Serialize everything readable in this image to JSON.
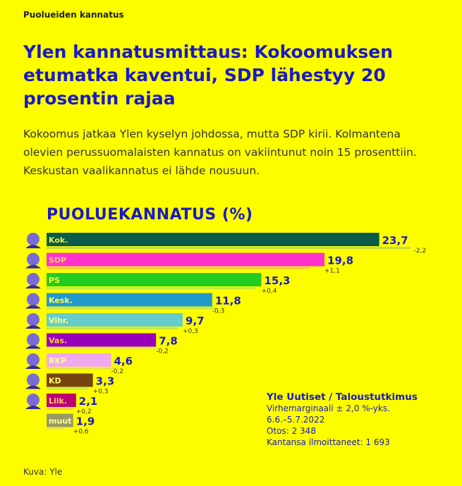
{
  "kicker": "Puolueiden kannatus",
  "title": "Ylen kannatusmittaus: Kokoomuksen etumatka kaventui, SDP lähestyy 20 prosentin rajaa",
  "lead": "Kokoomus jatkaa Ylen kyselyn johdossa, mutta SDP kirii. Kolmantena olevien perussuomalaisten kannatus on vakiintunut noin 15 prosenttiin. Keskustan vaalikannatus ei lähde nousuun.",
  "source": {
    "title": "Yle Uutiset / Taloustutkimus",
    "margin": "Virhemarginaali ± 2,0 %-yks.",
    "period": "6.6.–5.7.2022",
    "sample": "Otos: 2 348",
    "respondents": "Kantansa ilmoittaneet: 1 693"
  },
  "credit": "Kuva: Yle",
  "chart_data": {
    "type": "bar",
    "title": "PUOLUEKANNATUS (%)",
    "categories": [
      "Kok.",
      "SDP",
      "PS",
      "Kesk.",
      "Vihr.",
      "Vas.",
      "RKP",
      "KD",
      "Liik.",
      "muut"
    ],
    "values": [
      23.7,
      19.8,
      15.3,
      11.8,
      9.7,
      7.8,
      4.6,
      3.3,
      2.1,
      1.9
    ],
    "value_labels": [
      "23,7",
      "19,8",
      "15,3",
      "11,8",
      "9,7",
      "7,8",
      "4,6",
      "3,3",
      "2,1",
      "1,9"
    ],
    "changes": [
      -2.2,
      1.1,
      0.4,
      -0.3,
      0.3,
      -0.2,
      -0.2,
      0.3,
      0.2,
      0.6
    ],
    "change_labels": [
      "-2,2",
      "+1,1",
      "+0,4",
      "-0,3",
      "+0,3",
      "-0,2",
      "-0,2",
      "+0,3",
      "+0,2",
      "+0,6"
    ],
    "colors": [
      "#0b5a4a",
      "#ff33cc",
      "#22cc22",
      "#2299cc",
      "#66cccc",
      "#9900bb",
      "#f0a8f0",
      "#774411",
      "#bb0077",
      "#999966"
    ],
    "label_colors": [
      "#e8f040",
      "#ffcc66",
      "#ffff33",
      "#ffff66",
      "#ffff88",
      "#ffcc33",
      "#ffff99",
      "#ffff66",
      "#ffcc66",
      "#ffff99"
    ],
    "prev_colors": [
      "#c6dc40",
      "#ffc840",
      "#c6e840",
      "#c6e840",
      "#c6e840",
      "#e8e840",
      "#e8e840",
      "#c6e840",
      "#ffc840",
      "#e8e840"
    ],
    "has_photo": [
      true,
      true,
      true,
      true,
      true,
      true,
      true,
      true,
      true,
      false
    ]
  }
}
